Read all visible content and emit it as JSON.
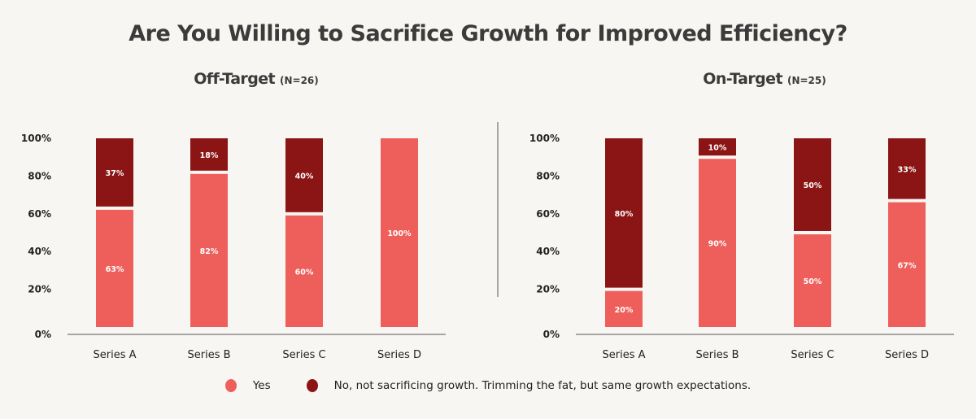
{
  "title": "Are You Willing to Sacrifice Growth for Improved Efficiency?",
  "colors": {
    "yes": "#ee5f5c",
    "no": "#8b1414",
    "background": "#f8f6f2",
    "axis": "#777777"
  },
  "legend": [
    {
      "label": "Yes",
      "color_key": "yes"
    },
    {
      "label": "No, not sacrificing growth. Trimming the fat, but same growth expectations.",
      "color_key": "no"
    }
  ],
  "chart_data": [
    {
      "type": "bar",
      "stacked": true,
      "title": "Off-Target",
      "subtitle": "(N=26)",
      "categories": [
        "Series A",
        "Series B",
        "Series C",
        "Series D"
      ],
      "series": [
        {
          "name": "Yes",
          "values": [
            63,
            82,
            60,
            100
          ],
          "labels": [
            "63%",
            "82%",
            "60%",
            "100%"
          ]
        },
        {
          "name": "No, not sacrificing growth. Trimming the fat, but same growth expectations.",
          "values": [
            37,
            18,
            40,
            0
          ],
          "labels": [
            "37%",
            "18%",
            "40%",
            ""
          ]
        }
      ],
      "yticks": [
        "0%",
        "20%",
        "40%",
        "60%",
        "80%",
        "100%"
      ],
      "ylim": [
        0,
        100
      ],
      "xlabel": "",
      "ylabel": "",
      "grid": false,
      "legend_position": "bottom"
    },
    {
      "type": "bar",
      "stacked": true,
      "title": "On-Target",
      "subtitle": "(N=25)",
      "categories": [
        "Series A",
        "Series B",
        "Series C",
        "Series D"
      ],
      "series": [
        {
          "name": "Yes",
          "values": [
            20,
            90,
            50,
            67
          ],
          "labels": [
            "20%",
            "90%",
            "50%",
            "67%"
          ]
        },
        {
          "name": "No, not sacrificing growth. Trimming the fat, but same growth expectations.",
          "values": [
            80,
            10,
            50,
            33
          ],
          "labels": [
            "80%",
            "10%",
            "50%",
            "33%"
          ]
        }
      ],
      "yticks": [
        "0%",
        "20%",
        "40%",
        "60%",
        "80%",
        "100%"
      ],
      "ylim": [
        0,
        100
      ],
      "xlabel": "",
      "ylabel": "",
      "grid": false,
      "legend_position": "bottom"
    }
  ]
}
